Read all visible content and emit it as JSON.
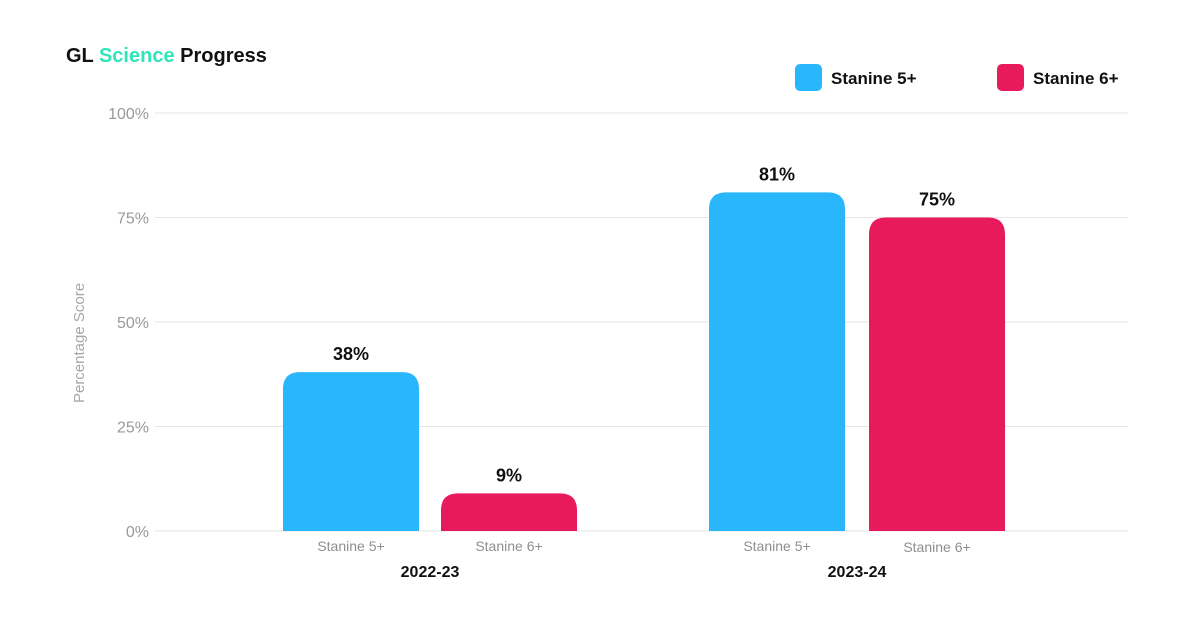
{
  "chart_data": {
    "type": "bar",
    "title_parts": [
      "GL ",
      "Science",
      " Progress"
    ],
    "title_accent_color": "#2ee6b8",
    "ylabel": "Percentage Score",
    "ylim": [
      0,
      100
    ],
    "yticks": [
      0,
      25,
      50,
      75,
      100
    ],
    "ytick_labels": [
      "0%",
      "25%",
      "50%",
      "75%",
      "100%"
    ],
    "grid": true,
    "legend_position": "top-right",
    "groups": [
      "2022-23",
      "2023-24"
    ],
    "bar_categories": [
      "Stanine 5+",
      "Stanine 6+"
    ],
    "series": [
      {
        "name": "Stanine 5+",
        "color": "#29b6fb",
        "values": [
          38,
          81
        ],
        "value_labels": [
          "38%",
          "81%"
        ]
      },
      {
        "name": "Stanine 6+",
        "color": "#e71a5b",
        "values": [
          9,
          75
        ],
        "value_labels": [
          "9%",
          "75%"
        ]
      }
    ]
  }
}
